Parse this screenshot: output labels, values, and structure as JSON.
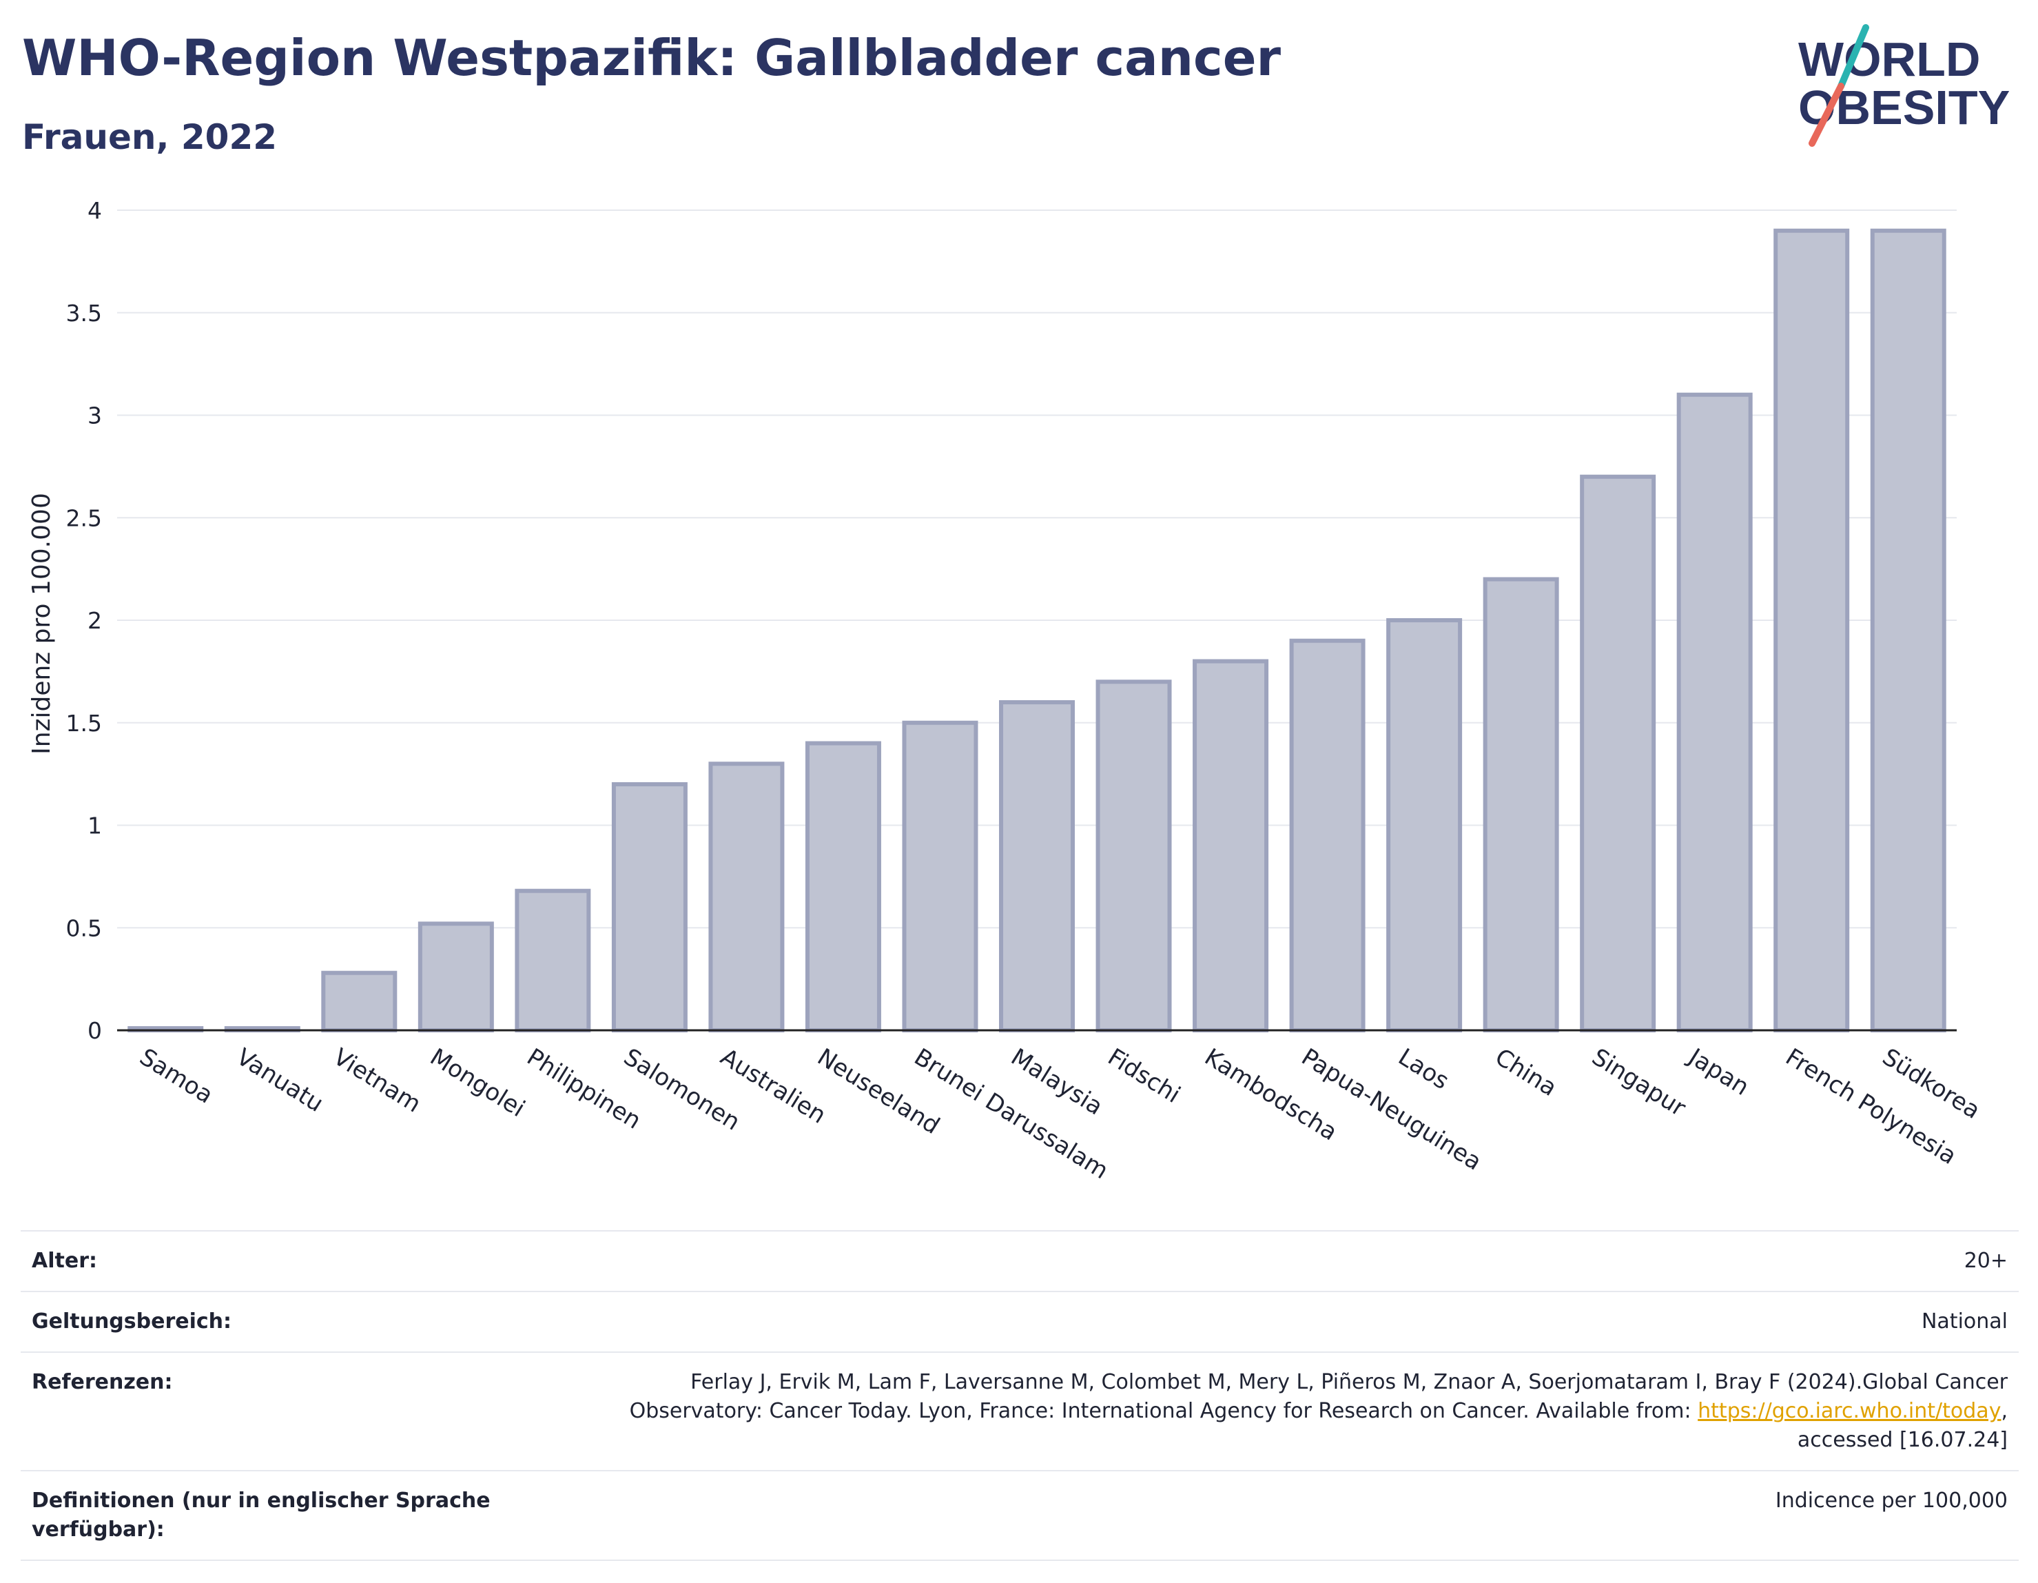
{
  "header": {
    "title": "WHO-Region Westpazifik: Gallbladder cancer",
    "subtitle": "Frauen, 2022",
    "logo_line1": "WORLD",
    "logo_line2": "OBESITY"
  },
  "colors": {
    "title": "#2b3462",
    "bar_fill": "#bfc3d2",
    "bar_stroke": "#9da3bd",
    "grid": "#e6e8ee",
    "axis": "#222222",
    "link": "#e0a100",
    "logo_teal": "#2ab3b1",
    "logo_coral": "#e8685a"
  },
  "chart_data": {
    "type": "bar",
    "title": "WHO-Region Westpazifik: Gallbladder cancer",
    "subtitle": "Frauen, 2022",
    "xlabel": "",
    "ylabel": "Inzidenz pro 100.000",
    "ylim": [
      0,
      4
    ],
    "yticks": [
      0,
      0.5,
      1,
      1.5,
      2,
      2.5,
      3,
      3.5,
      4
    ],
    "ytick_labels": [
      "0",
      "0.5",
      "1",
      "1.5",
      "2",
      "2.5",
      "3",
      "3.5",
      "4"
    ],
    "grid": true,
    "legend": "none",
    "categories": [
      "Samoa",
      "Vanuatu",
      "Vietnam",
      "Mongolei",
      "Philippinen",
      "Salomonen",
      "Australien",
      "Neuseeland",
      "Brunei Darussalam",
      "Malaysia",
      "Fidschi",
      "Kambodscha",
      "Papua-Neuguinea",
      "Laos",
      "China",
      "Singapur",
      "Japan",
      "French Polynesia",
      "Südkorea"
    ],
    "values": [
      0.01,
      0.01,
      0.28,
      0.52,
      0.68,
      1.2,
      1.3,
      1.4,
      1.5,
      1.6,
      1.7,
      1.8,
      1.9,
      2.0,
      2.2,
      2.7,
      3.1,
      3.9,
      3.9
    ]
  },
  "info": {
    "age_label": "Alter:",
    "age_value": "20+",
    "scope_label": "Geltungsbereich:",
    "scope_value": "National",
    "refs_label": "Referenzen:",
    "refs_text_1": "Ferlay J, Ervik M, Lam F, Laversanne M, Colombet M, Mery L, Piñeros M, Znaor A, Soerjomataram I, Bray F (2024).Global Cancer",
    "refs_text_2": "Observatory: Cancer Today. Lyon, France: International Agency for Research on Cancer. Available from: ",
    "refs_link": "https://gco.iarc.who.int/today",
    "refs_text_3": ",",
    "refs_text_4": "accessed [16.07.24]",
    "defs_label": "Definitionen (nur in englischer Sprache verfügbar):",
    "defs_value": "Indicence per 100,000"
  }
}
